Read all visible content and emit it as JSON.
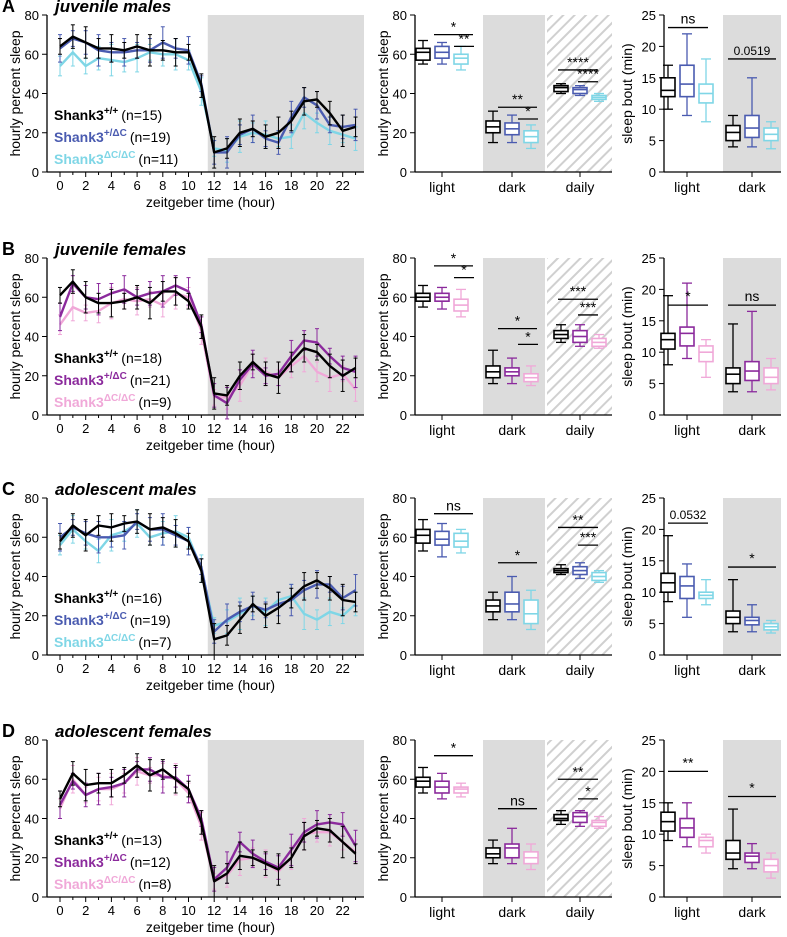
{
  "figure": {
    "x_title": "zeitgeber time (hour)",
    "y_title_line": "hourly percent sleep",
    "y_title_box": "hourly percent sleep",
    "y_title_bout": "sleep bout (min)"
  },
  "panels": [
    {
      "letter": "A",
      "title": "juvenile males",
      "legend": [
        {
          "gene": "Shank3",
          "sup": "+/+",
          "n": "(n=15)"
        },
        {
          "gene": "Shank3",
          "sup": "+/ΔC",
          "n": "(n=19)"
        },
        {
          "gene": "Shank3",
          "sup": "ΔC/ΔC",
          "n": "(n=11)"
        }
      ],
      "colors": [
        "#000000",
        "#4a5bb0",
        "#7fd6e6"
      ],
      "light_colors": [
        "#000000",
        "#4a5bb0",
        "#7fd6e6"
      ],
      "series": [
        [
          64,
          69,
          66,
          63,
          63,
          62,
          64,
          62,
          62,
          61,
          61,
          44,
          10,
          12,
          20,
          22,
          18,
          20,
          26,
          36,
          37,
          30,
          21,
          23
        ],
        [
          63,
          68,
          66,
          62,
          61,
          61,
          62,
          62,
          66,
          63,
          62,
          45,
          10,
          10,
          19,
          22,
          17,
          15,
          28,
          38,
          34,
          24,
          23,
          24
        ],
        [
          54,
          61,
          54,
          58,
          57,
          56,
          58,
          61,
          60,
          60,
          57,
          41,
          12,
          11,
          18,
          20,
          19,
          17,
          18,
          30,
          25,
          21,
          19,
          17
        ]
      ],
      "box_light": [
        [
          61,
          57,
          63,
          55,
          67
        ],
        [
          61,
          58,
          64,
          55,
          66
        ],
        [
          58,
          55,
          60,
          52,
          64
        ]
      ],
      "box_dark": [
        [
          23,
          20,
          26,
          15,
          31
        ],
        [
          22,
          19,
          25,
          15,
          29
        ],
        [
          18,
          15,
          21,
          12,
          24
        ]
      ],
      "box_daily": [
        [
          43,
          41,
          44,
          40,
          45
        ],
        [
          42,
          40,
          43,
          39,
          44
        ],
        [
          38,
          37,
          39,
          36,
          40
        ]
      ],
      "bout_light": [
        [
          13,
          12,
          15,
          10,
          17
        ],
        [
          14,
          12,
          17,
          9,
          22
        ],
        [
          12.5,
          11,
          14,
          8,
          18
        ]
      ],
      "bout_dark": [
        [
          6.3,
          5,
          7.4,
          4,
          9
        ],
        [
          7,
          5.5,
          9,
          4,
          15
        ],
        [
          6,
          5,
          7,
          3.7,
          8
        ]
      ],
      "sig_box": [
        {
          "label": "*",
          "y": 70
        },
        {
          "label": "**",
          "y": 64
        },
        {
          "label": "**",
          "y": 33
        },
        {
          "label": "*",
          "y": 27
        },
        {
          "label": "****",
          "y": 52
        },
        {
          "label": "****",
          "y": 46
        }
      ],
      "sig_bout": [
        {
          "label": "ns",
          "y": 23
        },
        {
          "label": "0.0519",
          "y": 18
        }
      ]
    },
    {
      "letter": "B",
      "title": "juvenile females",
      "legend": [
        {
          "gene": "Shank3",
          "sup": "+/+",
          "n": "(n=18)"
        },
        {
          "gene": "Shank3",
          "sup": "+/ΔC",
          "n": "(n=21)"
        },
        {
          "gene": "Shank3",
          "sup": "ΔC/ΔC",
          "n": "(n=9)"
        }
      ],
      "colors": [
        "#000000",
        "#8b2a9c",
        "#f0a8d8"
      ],
      "light_colors": [
        "#000000",
        "#8b2a9c",
        "#f0a8d8"
      ],
      "series": [
        [
          61,
          68,
          60,
          57,
          57,
          58,
          60,
          57,
          63,
          63,
          58,
          45,
          11,
          10,
          20,
          27,
          21,
          19,
          27,
          34,
          32,
          25,
          20,
          24
        ],
        [
          50,
          67,
          60,
          59,
          62,
          64,
          60,
          62,
          63,
          66,
          63,
          46,
          10,
          6,
          18,
          26,
          20,
          21,
          30,
          38,
          37,
          30,
          24,
          22
        ],
        [
          46,
          55,
          52,
          53,
          57,
          59,
          58,
          59,
          56,
          62,
          60,
          43,
          9,
          9,
          15,
          26,
          22,
          19,
          25,
          30,
          22,
          19,
          21,
          13
        ]
      ],
      "box_light": [
        [
          60,
          58,
          62,
          55,
          66
        ],
        [
          60,
          58,
          62,
          54,
          65
        ],
        [
          56,
          53,
          59,
          50,
          64
        ]
      ],
      "box_dark": [
        [
          22,
          19,
          25,
          16,
          33
        ],
        [
          22,
          20,
          24,
          16,
          29
        ],
        [
          19,
          17,
          21,
          15,
          25
        ]
      ],
      "box_daily": [
        [
          41,
          39,
          43,
          37,
          46
        ],
        [
          40,
          37,
          43,
          35,
          46
        ],
        [
          37,
          35,
          39,
          34,
          41
        ]
      ],
      "bout_light": [
        [
          12,
          10.5,
          13,
          8,
          19
        ],
        [
          13,
          11,
          14,
          9,
          21
        ],
        [
          10,
          8.5,
          11,
          6,
          12
        ]
      ],
      "bout_dark": [
        [
          6.5,
          5,
          7.5,
          3.7,
          14.5
        ],
        [
          7,
          5.5,
          8.5,
          3.7,
          16.5
        ],
        [
          6,
          5,
          7.5,
          4,
          9
        ]
      ],
      "sig_box": [
        {
          "label": "*",
          "y": 76
        },
        {
          "label": "*",
          "y": 70
        },
        {
          "label": "*",
          "y": 44
        },
        {
          "label": "*",
          "y": 36
        },
        {
          "label": "***",
          "y": 59
        },
        {
          "label": "***",
          "y": 51
        }
      ],
      "sig_bout": [
        {
          "label": "*",
          "y": 17.5
        },
        {
          "label": "ns",
          "y": 17.5
        }
      ]
    },
    {
      "letter": "C",
      "title": "adolescent males",
      "legend": [
        {
          "gene": "Shank3",
          "sup": "+/+",
          "n": "(n=16)"
        },
        {
          "gene": "Shank3",
          "sup": "+/ΔC",
          "n": "(n=19)"
        },
        {
          "gene": "Shank3",
          "sup": "ΔC/ΔC",
          "n": "(n=7)"
        }
      ],
      "colors": [
        "#000000",
        "#4a5bb0",
        "#7fd6e6"
      ],
      "light_colors": [
        "#000000",
        "#4a5bb0",
        "#7fd6e6"
      ],
      "series": [
        [
          58,
          66,
          61,
          66,
          65,
          67,
          68,
          64,
          65,
          62,
          58,
          43,
          8,
          10,
          18,
          26,
          20,
          24,
          29,
          35,
          38,
          34,
          28,
          27
        ],
        [
          60,
          65,
          62,
          60,
          60,
          61,
          68,
          64,
          64,
          61,
          58,
          45,
          12,
          18,
          22,
          25,
          23,
          26,
          28,
          33,
          36,
          36,
          29,
          33
        ],
        [
          56,
          64,
          58,
          53,
          61,
          63,
          67,
          60,
          62,
          63,
          60,
          44,
          15,
          17,
          21,
          25,
          22,
          28,
          30,
          21,
          18,
          22,
          20,
          26
        ]
      ],
      "box_light": [
        [
          61,
          57,
          64,
          53,
          69
        ],
        [
          59,
          56,
          63,
          50,
          67
        ],
        [
          58,
          55,
          62,
          52,
          64
        ]
      ],
      "box_dark": [
        [
          25,
          22,
          28,
          18,
          32
        ],
        [
          26,
          22,
          32,
          18,
          40
        ],
        [
          21,
          16,
          28,
          13,
          33
        ]
      ],
      "box_daily": [
        [
          43,
          42,
          44,
          41,
          46
        ],
        [
          43,
          41,
          45,
          39,
          47
        ],
        [
          40,
          38,
          42,
          37,
          43
        ]
      ],
      "bout_light": [
        [
          11.5,
          10,
          13,
          8.5,
          19
        ],
        [
          11,
          9,
          12.5,
          6,
          14.5
        ],
        [
          9.5,
          9,
          10,
          8,
          12
        ]
      ],
      "bout_dark": [
        [
          6,
          5,
          7,
          3.7,
          12
        ],
        [
          5.5,
          4.8,
          6,
          3.7,
          8
        ],
        [
          4.5,
          4,
          5,
          3.5,
          5.5
        ]
      ],
      "sig_box": [
        {
          "label": "ns",
          "y": 72
        },
        {
          "label": "*",
          "y": 47
        },
        {
          "label": "**",
          "y": 65
        },
        {
          "label": "***",
          "y": 56
        }
      ],
      "sig_bout": [
        {
          "label": "0.0532",
          "y": 21
        },
        {
          "label": "*",
          "y": 14
        }
      ]
    },
    {
      "letter": "D",
      "title": "adolescent females",
      "legend": [
        {
          "gene": "Shank3",
          "sup": "+/+",
          "n": "(n=13)"
        },
        {
          "gene": "Shank3",
          "sup": "+/ΔC",
          "n": "(n=12)"
        },
        {
          "gene": "Shank3",
          "sup": "ΔC/ΔC",
          "n": "(n=8)"
        }
      ],
      "colors": [
        "#000000",
        "#8b2a9c",
        "#f0a8d8"
      ],
      "light_colors": [
        "#000000",
        "#8b2a9c",
        "#f0a8d8"
      ],
      "series": [
        [
          50,
          63,
          57,
          58,
          58,
          62,
          67,
          62,
          65,
          60,
          55,
          38,
          8,
          12,
          21,
          20,
          17,
          14,
          20,
          31,
          35,
          34,
          28,
          22
        ],
        [
          47,
          59,
          52,
          55,
          56,
          58,
          65,
          65,
          61,
          61,
          55,
          40,
          9,
          15,
          28,
          22,
          18,
          15,
          24,
          33,
          37,
          38,
          37,
          26
        ],
        [
          45,
          60,
          52,
          55,
          55,
          58,
          64,
          62,
          62,
          60,
          53,
          36,
          8,
          11,
          19,
          20,
          17,
          13,
          20,
          32,
          33,
          33,
          28,
          23
        ]
      ],
      "box_light": [
        [
          59,
          56,
          61,
          53,
          66
        ],
        [
          56,
          53,
          59,
          50,
          63
        ],
        [
          55,
          53,
          56,
          51,
          58
        ]
      ],
      "box_dark": [
        [
          22,
          20,
          25,
          17,
          29
        ],
        [
          25,
          20,
          27,
          17,
          35
        ],
        [
          20,
          17,
          23,
          14,
          27
        ]
      ],
      "box_daily": [
        [
          40,
          39,
          42,
          37,
          44
        ],
        [
          41,
          38,
          43,
          36,
          44
        ],
        [
          38,
          36,
          39,
          35,
          41
        ]
      ],
      "bout_light": [
        [
          12,
          10.5,
          13.5,
          9,
          15
        ],
        [
          11,
          9.5,
          12.5,
          8,
          15
        ],
        [
          9,
          8,
          9.5,
          7,
          10
        ]
      ],
      "bout_dark": [
        [
          7,
          6,
          9,
          4.5,
          14
        ],
        [
          6.5,
          5.5,
          7,
          4.5,
          8.5
        ],
        [
          5,
          4,
          6,
          3,
          7
        ]
      ],
      "sig_box": [
        {
          "label": "*",
          "y": 72
        },
        {
          "label": "ns",
          "y": 45
        },
        {
          "label": "**",
          "y": 60
        },
        {
          "label": "*",
          "y": 50
        }
      ],
      "sig_bout": [
        {
          "label": "**",
          "y": 20
        },
        {
          "label": "*",
          "y": 16
        }
      ]
    }
  ],
  "chart_data": [
    {
      "type": "line",
      "title": "juvenile males",
      "xlabel": "zeitgeber time (hour)",
      "ylabel": "hourly percent sleep",
      "x": [
        0,
        1,
        2,
        3,
        4,
        5,
        6,
        7,
        8,
        9,
        10,
        11,
        12,
        13,
        14,
        15,
        16,
        17,
        18,
        19,
        20,
        21,
        22,
        23
      ],
      "ylim": [
        0,
        80
      ],
      "dark_phase": [
        11.5,
        23.5
      ],
      "series_ref": "panels.0.series",
      "series_names": [
        "Shank3+/+ (n=15)",
        "Shank3+/ΔC (n=19)",
        "Shank3ΔC/ΔC (n=11)"
      ]
    },
    {
      "type": "box",
      "title": "juvenile males hourly percent sleep",
      "categories": [
        "light",
        "dark",
        "daily"
      ],
      "ylim": [
        0,
        80
      ],
      "stats_order": [
        "median",
        "q1",
        "q3",
        "min",
        "max"
      ]
    },
    {
      "type": "box",
      "title": "juvenile males sleep bout (min)",
      "categories": [
        "light",
        "dark"
      ],
      "ylim": [
        0,
        25
      ]
    }
  ]
}
